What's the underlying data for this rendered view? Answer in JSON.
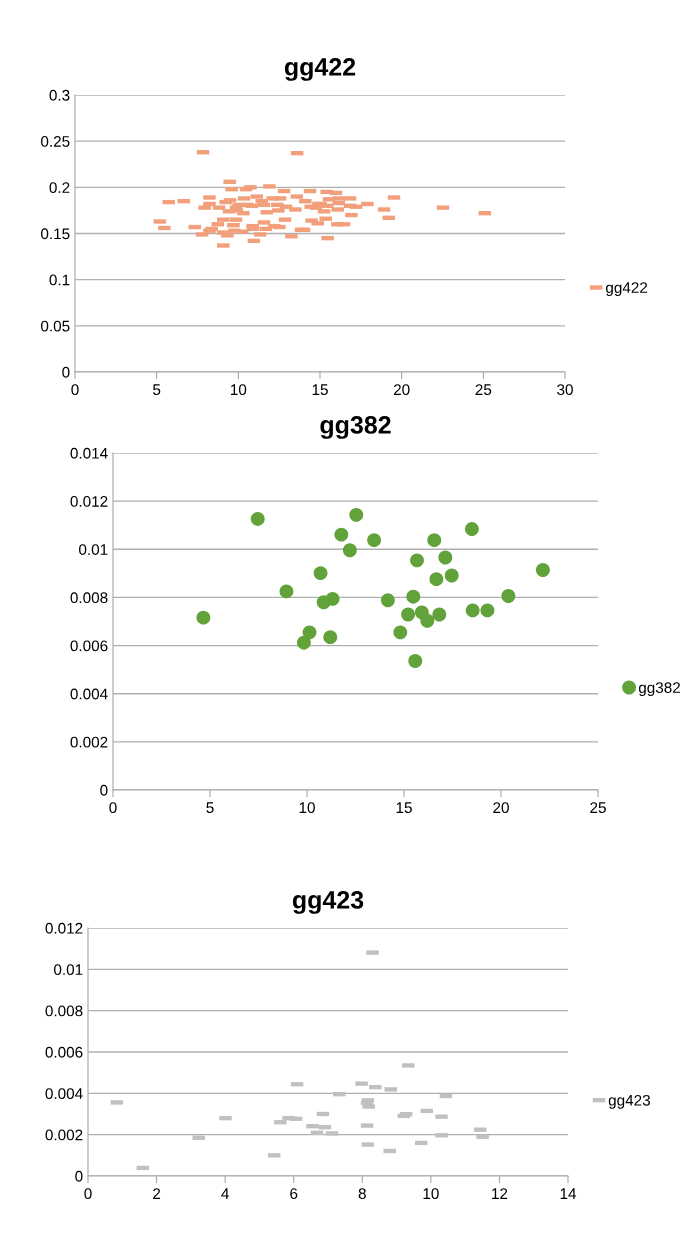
{
  "chart_data": [
    {
      "type": "scatter",
      "title": "gg422",
      "marker": "square",
      "grid": "y",
      "legend": "right",
      "xlim": [
        0,
        30
      ],
      "xticks": [
        0,
        5,
        10,
        15,
        20,
        25,
        30
      ],
      "ylim": [
        0,
        0.3
      ],
      "yticks": [
        0,
        0.05,
        0.1,
        0.15,
        0.2,
        0.25,
        0.3
      ],
      "series": [
        {
          "name": "gg422",
          "color": "#f2a07b",
          "x": [
            7.84,
            13.6,
            9.47,
            9.59,
            10.47,
            10.74,
            11.9,
            12.8,
            14.39,
            5.74,
            6.66,
            8.23,
            8.23,
            7.94,
            8.82,
            9.23,
            9.49,
            9.86,
            10.02,
            10.35,
            10.55,
            10.82,
            11.13,
            11.43,
            11.57,
            11.74,
            12.1,
            12.39,
            12.55,
            12.45,
            12.92,
            13.58,
            13.49,
            14.1,
            14.43,
            9.9,
            9.43,
            10.31,
            5.2,
            5.47,
            7.33,
            9.08,
            9.86,
            8.74,
            8.37,
            8.23,
            7.78,
            9.7,
            9.08,
            9.33,
            9.76,
            10.24,
            10.88,
            10.9,
            11.57,
            11.68,
            11.33,
            12.19,
            12.51,
            12.86,
            13.84,
            14.02,
            13.25,
            10.95,
            9.08,
            14.49,
            14.86,
            14.9,
            14.75,
            15.41,
            15.98,
            15.55,
            16.15,
            16.84,
            15.04,
            15.45,
            16.15,
            16.84,
            17.21,
            17.9,
            15.25,
            16.08,
            16.92,
            15.35,
            16.06,
            16.47,
            15.47,
            18.92,
            19.53,
            19.21,
            22.53,
            25.09
          ],
          "values": [
            0.238,
            0.237,
            0.206,
            0.198,
            0.198,
            0.2,
            0.201,
            0.196,
            0.196,
            0.184,
            0.185,
            0.189,
            0.182,
            0.178,
            0.178,
            0.184,
            0.186,
            0.178,
            0.181,
            0.188,
            0.181,
            0.18,
            0.19,
            0.185,
            0.181,
            0.173,
            0.188,
            0.181,
            0.188,
            0.175,
            0.179,
            0.19,
            0.176,
            0.185,
            0.179,
            0.175,
            0.174,
            0.172,
            0.163,
            0.156,
            0.157,
            0.165,
            0.165,
            0.16,
            0.155,
            0.153,
            0.149,
            0.159,
            0.151,
            0.148,
            0.153,
            0.152,
            0.158,
            0.155,
            0.162,
            0.155,
            0.149,
            0.158,
            0.157,
            0.165,
            0.154,
            0.154,
            0.147,
            0.142,
            0.137,
            0.164,
            0.161,
            0.182,
            0.178,
            0.195,
            0.194,
            0.187,
            0.188,
            0.188,
            0.182,
            0.18,
            0.183,
            0.18,
            0.179,
            0.182,
            0.174,
            0.176,
            0.17,
            0.166,
            0.16,
            0.16,
            0.145,
            0.176,
            0.189,
            0.167,
            0.178,
            0.172
          ]
        }
      ]
    },
    {
      "type": "scatter",
      "title": "gg382",
      "marker": "circle",
      "grid": "y",
      "legend": "right",
      "xlim": [
        0,
        25
      ],
      "xticks": [
        0,
        5,
        10,
        15,
        20,
        25
      ],
      "ylim": [
        0,
        0.014
      ],
      "yticks": [
        0,
        0.002,
        0.004,
        0.006,
        0.008,
        0.01,
        0.012,
        0.014
      ],
      "series": [
        {
          "name": "gg382",
          "color": "#62a23a",
          "x": [
            4.66,
            7.46,
            8.94,
            9.84,
            10.13,
            10.7,
            10.86,
            11.32,
            11.2,
            11.77,
            12.21,
            12.54,
            13.46,
            14.17,
            14.81,
            15.21,
            15.48,
            15.67,
            15.58,
            15.92,
            16.2,
            16.56,
            16.67,
            16.82,
            17.13,
            17.46,
            18.5,
            18.54,
            19.3,
            20.38,
            22.16
          ],
          "values": [
            0.00716,
            0.01126,
            0.00825,
            0.00612,
            0.00655,
            0.00901,
            0.0078,
            0.00794,
            0.00635,
            0.01061,
            0.00996,
            0.01143,
            0.01038,
            0.00788,
            0.00655,
            0.00729,
            0.00803,
            0.00954,
            0.00536,
            0.00738,
            0.00703,
            0.01038,
            0.00876,
            0.00729,
            0.00966,
            0.00891,
            0.01084,
            0.00746,
            0.00746,
            0.00806,
            0.00914
          ]
        }
      ]
    },
    {
      "type": "scatter",
      "title": "gg423",
      "marker": "square",
      "grid": "y",
      "legend": "right",
      "xlim": [
        0,
        14
      ],
      "xticks": [
        0,
        2,
        4,
        6,
        8,
        10,
        12,
        14
      ],
      "ylim": [
        0,
        0.012
      ],
      "yticks": [
        0,
        0.002,
        0.004,
        0.006,
        0.008,
        0.01,
        0.012
      ],
      "series": [
        {
          "name": "gg423",
          "color": "#c0c0c0",
          "x": [
            0.84,
            1.6,
            3.23,
            4.01,
            5.43,
            5.61,
            5.85,
            6.1,
            6.07,
            6.55,
            6.68,
            6.85,
            6.91,
            7.12,
            7.33,
            7.98,
            8.16,
            8.14,
            8.19,
            8.14,
            8.16,
            8.3,
            8.38,
            8.83,
            8.8,
            9.21,
            9.28,
            9.34,
            9.72,
            9.88,
            10.31,
            10.31,
            10.44,
            11.44,
            11.51
          ],
          "values": [
            0.00356,
            0.00039,
            0.00185,
            0.0028,
            0.001,
            0.0026,
            0.0028,
            0.00444,
            0.00277,
            0.00241,
            0.00209,
            0.003,
            0.00236,
            0.00206,
            0.00396,
            0.00447,
            0.00366,
            0.00353,
            0.00336,
            0.00244,
            0.00152,
            0.01081,
            0.0043,
            0.00419,
            0.00121,
            0.00291,
            0.00299,
            0.00535,
            0.0016,
            0.00315,
            0.00287,
            0.00197,
            0.00387,
            0.00224,
            0.0019
          ]
        }
      ]
    }
  ]
}
